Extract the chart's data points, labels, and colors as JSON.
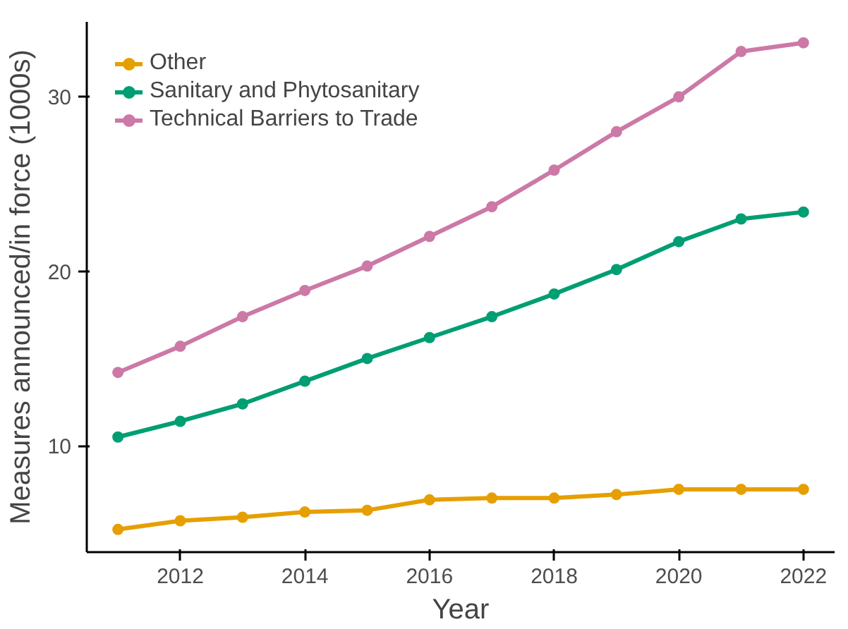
{
  "chart_data": {
    "type": "line",
    "xlabel": "Year",
    "ylabel": "Measures announced/in force (1000s)",
    "x": [
      2011,
      2012,
      2013,
      2014,
      2015,
      2016,
      2017,
      2018,
      2019,
      2020,
      2021,
      2022
    ],
    "series": [
      {
        "name": "Other",
        "color": "#e69f00",
        "values": [
          5.2,
          5.7,
          5.9,
          6.2,
          6.3,
          6.9,
          7.0,
          7.0,
          7.2,
          7.5,
          7.5,
          7.5
        ]
      },
      {
        "name": "Sanitary and Phytosanitary",
        "color": "#009e73",
        "values": [
          10.5,
          11.4,
          12.4,
          13.7,
          15.0,
          16.2,
          17.4,
          18.7,
          20.1,
          21.7,
          23.0,
          23.4
        ]
      },
      {
        "name": "Technical Barriers to Trade",
        "color": "#cc79a7",
        "values": [
          14.2,
          15.7,
          17.4,
          18.9,
          20.3,
          22.0,
          23.7,
          25.8,
          28.0,
          30.0,
          32.6,
          33.1
        ]
      }
    ],
    "xlim": [
      2010.5,
      2022.5
    ],
    "ylim": [
      3.9,
      34.3
    ],
    "xticks": [
      2012,
      2014,
      2016,
      2018,
      2020,
      2022
    ],
    "yticks": [
      10,
      20,
      30
    ],
    "grid": false,
    "legend": "top left",
    "marker": "circle",
    "line_style": "solid"
  }
}
